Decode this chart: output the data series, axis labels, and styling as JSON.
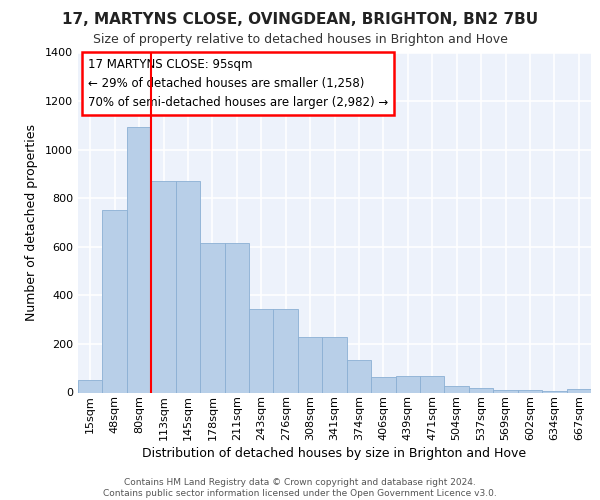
{
  "title": "17, MARTYNS CLOSE, OVINGDEAN, BRIGHTON, BN2 7BU",
  "subtitle": "Size of property relative to detached houses in Brighton and Hove",
  "xlabel": "Distribution of detached houses by size in Brighton and Hove",
  "ylabel": "Number of detached properties",
  "categories": [
    "15sqm",
    "48sqm",
    "80sqm",
    "113sqm",
    "145sqm",
    "178sqm",
    "211sqm",
    "243sqm",
    "276sqm",
    "308sqm",
    "341sqm",
    "374sqm",
    "406sqm",
    "439sqm",
    "471sqm",
    "504sqm",
    "537sqm",
    "569sqm",
    "602sqm",
    "634sqm",
    "667sqm"
  ],
  "values": [
    50,
    750,
    1095,
    870,
    870,
    615,
    615,
    345,
    345,
    230,
    230,
    135,
    65,
    70,
    70,
    25,
    20,
    10,
    10,
    5,
    15
  ],
  "bar_color": "#b8cfe8",
  "bar_edge_color": "#8bafd4",
  "vline_color": "red",
  "vline_x": 2.5,
  "annotation_text": "17 MARTYNS CLOSE: 95sqm\n← 29% of detached houses are smaller (1,258)\n70% of semi-detached houses are larger (2,982) →",
  "annotation_box_facecolor": "white",
  "annotation_box_edgecolor": "red",
  "ylim_max": 1400,
  "yticks": [
    0,
    200,
    400,
    600,
    800,
    1000,
    1200,
    1400
  ],
  "footer_line1": "Contains HM Land Registry data © Crown copyright and database right 2024.",
  "footer_line2": "Contains public sector information licensed under the Open Government Licence v3.0.",
  "bg_color": "#edf2fb",
  "grid_color": "white",
  "title_fontsize": 11,
  "subtitle_fontsize": 9,
  "ylabel_fontsize": 9,
  "xlabel_fontsize": 9,
  "tick_fontsize": 8,
  "annot_fontsize": 8.5
}
